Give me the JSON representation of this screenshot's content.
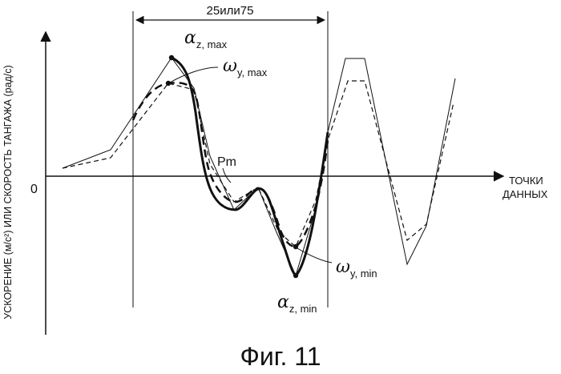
{
  "figure": {
    "caption": "Фиг. 11",
    "y_axis_label": "УСКОРЕНИЕ (м/с²) ИЛИ СКОРОСТЬ ТАНГАЖА (рад/с)",
    "x_axis_label_line1": "ТОЧКИ",
    "x_axis_label_line2": "ДАННЫХ",
    "origin_label": "0",
    "window_label": "25или75",
    "point_labels": {
      "az_max": {
        "greek": "α",
        "sub": "z, max"
      },
      "wy_max": {
        "greek": "ω",
        "sub": "y, max"
      },
      "pm": {
        "text": "Pm"
      },
      "wy_min": {
        "greek": "ω",
        "sub": "y, min"
      },
      "az_min": {
        "greek": "α",
        "sub": "z, min"
      }
    }
  }
}
